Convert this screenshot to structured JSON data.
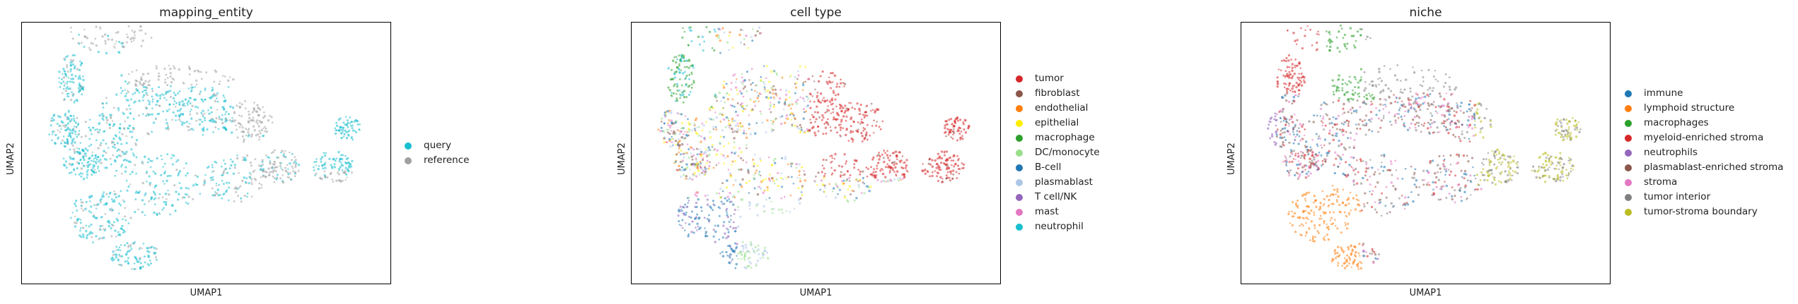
{
  "chart_data": [
    {
      "type": "scatter",
      "title": "mapping_entity",
      "xlabel": "UMAP1",
      "ylabel": "UMAP2",
      "legend_position": "right",
      "categories": [
        {
          "label": "query",
          "color": "#17becf"
        },
        {
          "label": "reference",
          "color": "#a0a0a0"
        }
      ]
    },
    {
      "type": "scatter",
      "title": "cell type",
      "xlabel": "UMAP1",
      "ylabel": "UMAP2",
      "legend_position": "right",
      "categories": [
        {
          "label": "tumor",
          "color": "#d62728"
        },
        {
          "label": "fibroblast",
          "color": "#8c564b"
        },
        {
          "label": "endothelial",
          "color": "#ff7f0e"
        },
        {
          "label": "epithelial",
          "color": "#ffee00"
        },
        {
          "label": "macrophage",
          "color": "#2ca02c"
        },
        {
          "label": "DC/monocyte",
          "color": "#98df8a"
        },
        {
          "label": "B-cell",
          "color": "#1f77b4"
        },
        {
          "label": "plasmablast",
          "color": "#aec7e8"
        },
        {
          "label": "T cell/NK",
          "color": "#9467bd"
        },
        {
          "label": "mast",
          "color": "#e377c2"
        },
        {
          "label": "neutrophil",
          "color": "#17becf"
        }
      ]
    },
    {
      "type": "scatter",
      "title": "niche",
      "xlabel": "UMAP1",
      "ylabel": "UMAP2",
      "legend_position": "right",
      "categories": [
        {
          "label": "immune",
          "color": "#1f77b4"
        },
        {
          "label": "lymphoid structure",
          "color": "#ff7f0e"
        },
        {
          "label": "macrophages",
          "color": "#2ca02c"
        },
        {
          "label": "myeloid-enriched stroma",
          "color": "#d62728"
        },
        {
          "label": "neutrophils",
          "color": "#9467bd"
        },
        {
          "label": "plasmablast-enriched stroma",
          "color": "#8c564b"
        },
        {
          "label": "stroma",
          "color": "#e377c2"
        },
        {
          "label": "tumor interior",
          "color": "#7f7f7f"
        },
        {
          "label": "tumor-stroma boundary",
          "color": "#bcbd22"
        }
      ]
    }
  ]
}
